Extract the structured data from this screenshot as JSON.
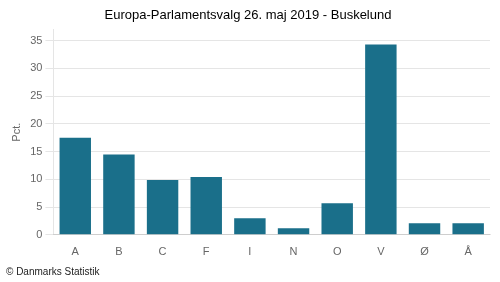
{
  "chart_data": {
    "type": "bar",
    "title": "Europa-Parlamentsvalg 26. maj 2019 - Buskelund",
    "categories": [
      "A",
      "B",
      "C",
      "F",
      "I",
      "N",
      "O",
      "V",
      "Ø",
      "Å"
    ],
    "values": [
      17.5,
      14.5,
      9.9,
      10.4,
      3.0,
      1.2,
      5.7,
      34.3,
      2.1,
      2.1
    ],
    "color": "#1a6f8a",
    "ylabel": "Pct.",
    "ylim": [
      0,
      37
    ],
    "yticks": [
      0,
      5,
      10,
      15,
      20,
      25,
      30,
      35
    ],
    "grid": true,
    "footer": "© Danmarks Statistik"
  }
}
